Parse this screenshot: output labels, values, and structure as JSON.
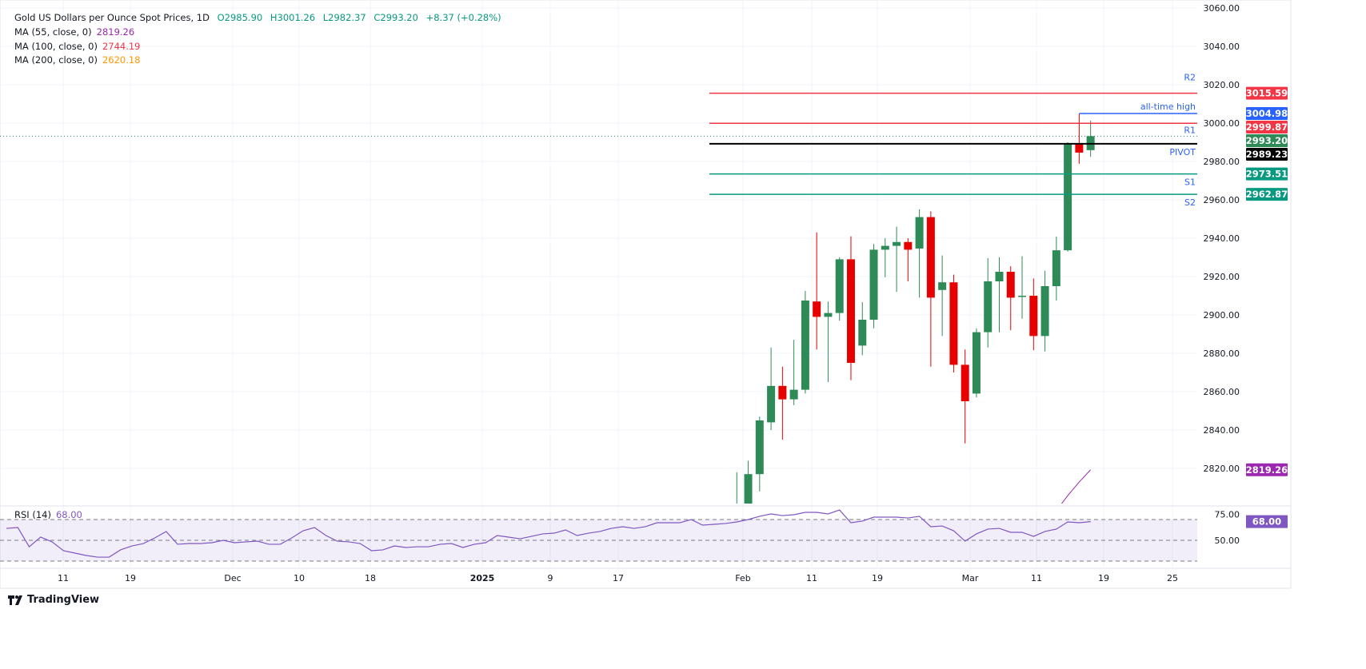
{
  "header": {
    "title": "Gold US Dollars per Ounce Spot Prices, 1D",
    "open": "O2985.90",
    "high": "H3001.26",
    "low": "L2982.37",
    "close": "C2993.20",
    "change": "+8.37 (+0.28%)"
  },
  "indicators": [
    {
      "label": "MA (55, close, 0)",
      "value": "2819.26",
      "color": "#9c27b0"
    },
    {
      "label": "MA (100, close, 0)",
      "value": "2744.19",
      "color": "#f23645"
    },
    {
      "label": "MA (200, close, 0)",
      "value": "2620.18",
      "color": "#ff9800"
    }
  ],
  "colors": {
    "up": "#2e8b57",
    "down": "#e60000",
    "pivot": "#000000",
    "resistance": "#f23645",
    "support": "#089981",
    "ath": "#2962ff",
    "rsi": "#7e57c2"
  },
  "chart_data": {
    "type": "candlestick",
    "ylim": [
      2801,
      3062
    ],
    "y_ticks": [
      "3060.00",
      "3040.00",
      "3020.00",
      "3000.00",
      "2980.00",
      "2960.00",
      "2940.00",
      "2920.00",
      "2900.00",
      "2880.00",
      "2860.00",
      "2840.00",
      "2820.00"
    ],
    "x_ticks": [
      "11",
      "19",
      "Dec",
      "10",
      "18",
      "2025",
      "9",
      "17",
      "Feb",
      "11",
      "19",
      "Mar",
      "11",
      "19",
      "25"
    ],
    "candles": [
      [
        2790,
        2818,
        2785,
        2800
      ],
      [
        2795,
        2824,
        2790,
        2817
      ],
      [
        2817,
        2847,
        2808,
        2845
      ],
      [
        2844,
        2883,
        2840,
        2863
      ],
      [
        2863,
        2873,
        2835,
        2856
      ],
      [
        2856,
        2887,
        2853,
        2861
      ],
      [
        2861,
        2912.5,
        2859,
        2907.5
      ],
      [
        2907,
        2943,
        2882,
        2899
      ],
      [
        2899,
        2907,
        2865,
        2901
      ],
      [
        2901,
        2930,
        2897,
        2929
      ],
      [
        2929,
        2941,
        2866,
        2875
      ],
      [
        2884,
        2906.7,
        2879,
        2897.5
      ],
      [
        2897.5,
        2937,
        2893,
        2934
      ],
      [
        2934,
        2940,
        2919.6,
        2936
      ],
      [
        2936,
        2946,
        2912,
        2938
      ],
      [
        2938,
        2940,
        2917.5,
        2934
      ],
      [
        2934.6,
        2955,
        2909,
        2951
      ],
      [
        2951,
        2954,
        2873,
        2909
      ],
      [
        2913,
        2931,
        2889,
        2917
      ],
      [
        2917,
        2921,
        2870,
        2874
      ],
      [
        2874,
        2882,
        2833,
        2855
      ],
      [
        2859,
        2893,
        2857,
        2891
      ],
      [
        2891,
        2929.6,
        2883,
        2917.5
      ],
      [
        2917.5,
        2930,
        2891,
        2922.5
      ],
      [
        2922.5,
        2925.4,
        2892,
        2909
      ],
      [
        2909.5,
        2930.6,
        2898,
        2910
      ],
      [
        2910,
        2919,
        2881.6,
        2889
      ],
      [
        2889,
        2923,
        2881,
        2915
      ],
      [
        2915,
        2940.8,
        2907.5,
        2933.7
      ],
      [
        2933.7,
        2990,
        2933,
        2989.6
      ],
      [
        2989.6,
        3004.98,
        2978.8,
        2984.6
      ],
      [
        2985.9,
        3001.26,
        2982.37,
        2993.2
      ]
    ],
    "ma55_tail": [
      2798,
      2805.8,
      2812.9,
      2819.26
    ],
    "levels": [
      {
        "name": "R2",
        "value": 3015.59,
        "label": "3015.59",
        "kind": "resistance"
      },
      {
        "name": "R1",
        "value": 2999.87,
        "label": "2999.87",
        "kind": "resistance"
      },
      {
        "name": "PIVOT",
        "value": 2989.23,
        "label": "2989.23",
        "kind": "pivot"
      },
      {
        "name": "S1",
        "value": 2973.51,
        "label": "2973.51",
        "kind": "support"
      },
      {
        "name": "S2",
        "value": 2962.87,
        "label": "2962.87",
        "kind": "support"
      }
    ],
    "ath": {
      "name": "all-time high",
      "value": 3004.98,
      "label": "3004.98"
    },
    "last_price": {
      "value": 2993.2,
      "label": "2993.20"
    },
    "ma55_badge": "2819.26",
    "rsi": {
      "label": "RSI (14)",
      "value": "68.00",
      "ticks": [
        "75.00",
        "50.00"
      ],
      "bands": [
        70,
        50,
        30
      ],
      "values": [
        61.5,
        62.3,
        43.8,
        53.1,
        48.5,
        40,
        37.7,
        35.4,
        33.8,
        33.8,
        40.8,
        44.6,
        46.9,
        52.3,
        58.5,
        46.2,
        46.9,
        46.9,
        47.7,
        50,
        47.7,
        48.5,
        49.2,
        46.2,
        46.2,
        52.3,
        59.2,
        62.3,
        54.6,
        49.2,
        48.5,
        46.9,
        40,
        40.8,
        44.6,
        43.1,
        43.8,
        43.8,
        46.2,
        46.9,
        43.1,
        46.2,
        47.7,
        54.6,
        53.1,
        51.5,
        53.8,
        56.2,
        56.9,
        60,
        54.6,
        56.9,
        58.5,
        61.5,
        63.1,
        61.5,
        63.1,
        66.9,
        66.9,
        66.9,
        70,
        64.6,
        65.4,
        66.2,
        67.7,
        70,
        73.1,
        75.4,
        73.8,
        74.6,
        76.9,
        76.9,
        75.4,
        79.2,
        66.9,
        68.5,
        72.3,
        72.3,
        72.3,
        71.5,
        73.1,
        63.1,
        63.8,
        59.2,
        49.2,
        56.2,
        60.8,
        61.5,
        57.7,
        57.7,
        53.8,
        58.5,
        60.8,
        67.7,
        66.9,
        68
      ]
    }
  },
  "footer": {
    "brand": "TradingView"
  }
}
